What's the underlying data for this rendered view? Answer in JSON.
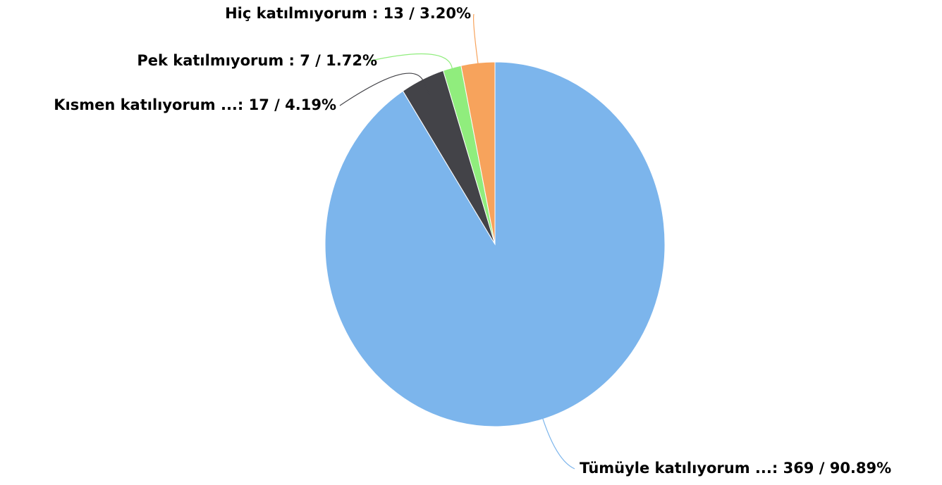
{
  "chart_data": {
    "type": "pie",
    "labels": [
      "Tümüyle katılıyorum ...: 369 / 90.89%",
      "Kısmen katılıyorum ...: 17 / 4.19%",
      "Pek katılmıyorum : 7 / 1.72%",
      "Hiç katılmıyorum : 13 / 3.20%"
    ],
    "values": [
      369,
      17,
      7,
      13
    ],
    "colors": [
      "#7cb5ec",
      "#434348",
      "#90ed7d",
      "#f7a35c"
    ]
  }
}
